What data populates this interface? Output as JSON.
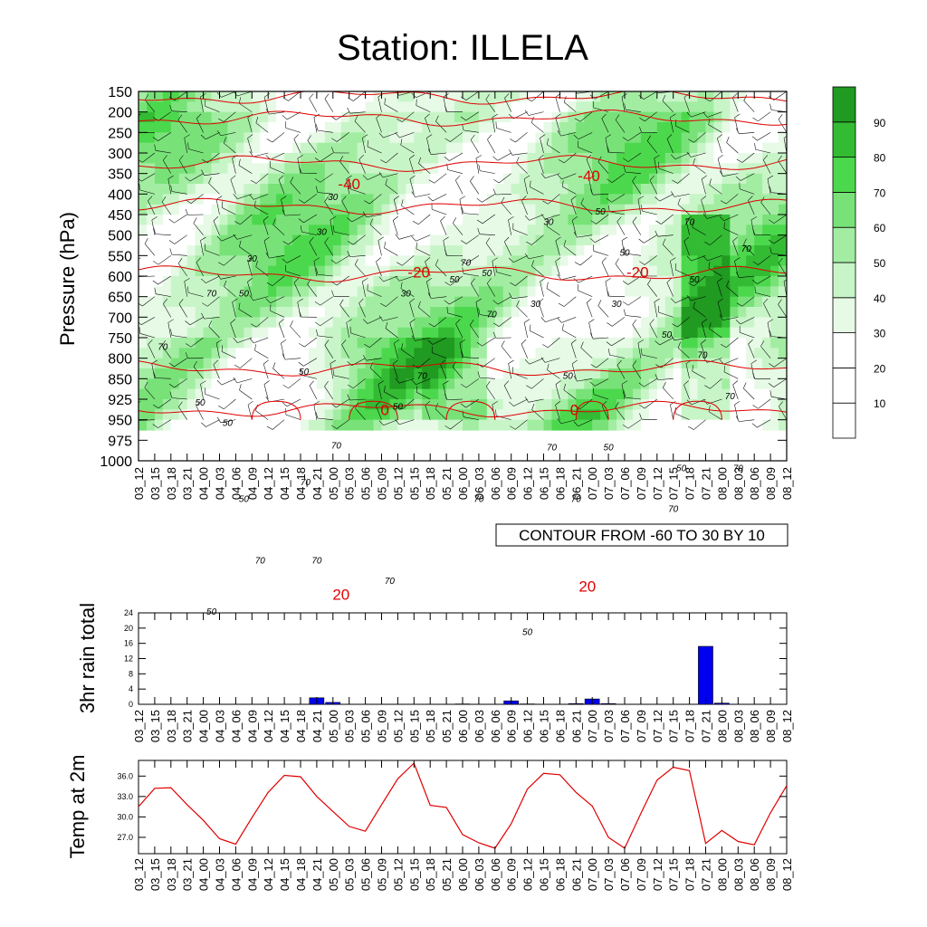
{
  "title": "Station: ILLELA",
  "times": [
    "03_12",
    "03_15",
    "03_18",
    "03_21",
    "04_00",
    "04_03",
    "04_06",
    "04_09",
    "04_12",
    "04_15",
    "04_18",
    "04_21",
    "05_00",
    "05_03",
    "05_06",
    "05_09",
    "05_12",
    "05_15",
    "05_18",
    "05_21",
    "06_00",
    "06_03",
    "06_06",
    "06_09",
    "06_12",
    "06_15",
    "06_18",
    "06_21",
    "07_00",
    "07_03",
    "07_06",
    "07_09",
    "07_12",
    "07_15",
    "07_18",
    "07_21",
    "08_00",
    "08_03",
    "08_06",
    "08_09",
    "08_12"
  ],
  "colors": {
    "rh_levels": [
      "#ffffff",
      "#ffffff",
      "#ffffff",
      "#e6fae6",
      "#c8f5c8",
      "#a2eda2",
      "#78e278",
      "#4cd84c",
      "#34bb34",
      "#209a20"
    ],
    "isotherm": "#e00000",
    "rain_bar": "#0000ee",
    "temp_line": "#e00000"
  },
  "chart_data": [
    {
      "type": "heatmap",
      "title": "Station: ILLELA",
      "ylabel": "Pressure (hPa)",
      "y_ticks": [
        "150",
        "200",
        "250",
        "300",
        "350",
        "400",
        "450",
        "500",
        "550",
        "600",
        "650",
        "700",
        "750",
        "800",
        "850",
        "925",
        "950",
        "975",
        "1000"
      ],
      "x_ticks": "times",
      "colorbar_labels": [
        "10",
        "20",
        "30",
        "40",
        "50",
        "60",
        "70",
        "80",
        "90"
      ],
      "contour_info": "CONTOUR FROM -60 TO 30 BY 10",
      "rh_labels": [
        {
          "text": "30",
          "t": 12.0,
          "p": 5.3
        },
        {
          "text": "30",
          "t": 11.3,
          "p": 7.0
        },
        {
          "text": "30",
          "t": 7.0,
          "p": 8.3
        },
        {
          "text": "70",
          "t": 4.5,
          "p": 10.0
        },
        {
          "text": "50",
          "t": 6.5,
          "p": 10.0
        },
        {
          "text": "70",
          "t": 1.5,
          "p": 12.6
        },
        {
          "text": "50",
          "t": 3.8,
          "p": 15.3
        },
        {
          "text": "50",
          "t": 5.5,
          "p": 16.3
        },
        {
          "text": "50",
          "t": 10.2,
          "p": 13.8
        },
        {
          "text": "30",
          "t": 16.5,
          "p": 10.0
        },
        {
          "text": "50",
          "t": 19.5,
          "p": 9.3
        },
        {
          "text": "70",
          "t": 20.2,
          "p": 8.5
        },
        {
          "text": "50",
          "t": 21.5,
          "p": 9.0
        },
        {
          "text": "70",
          "t": 21.8,
          "p": 11.0
        },
        {
          "text": "30",
          "t": 24.5,
          "p": 10.5
        },
        {
          "text": "70",
          "t": 17.5,
          "p": 14.0
        },
        {
          "text": "50",
          "t": 16.0,
          "p": 15.5
        },
        {
          "text": "70",
          "t": 12.2,
          "p": 17.4
        },
        {
          "text": "70",
          "t": 10.3,
          "p": 19.2
        },
        {
          "text": "50",
          "t": 6.5,
          "p": 20.0
        },
        {
          "text": "70",
          "t": 21.0,
          "p": 20.0
        },
        {
          "text": "70",
          "t": 15.5,
          "p": 24.0
        },
        {
          "text": "50",
          "t": 4.5,
          "p": 25.5
        },
        {
          "text": "30",
          "t": 25.3,
          "p": 6.5
        },
        {
          "text": "50",
          "t": 28.5,
          "p": 6.0
        },
        {
          "text": "30",
          "t": 29.5,
          "p": 10.5
        },
        {
          "text": "50",
          "t": 30.0,
          "p": 8.0
        },
        {
          "text": "70",
          "t": 34.0,
          "p": 6.5
        },
        {
          "text": "70",
          "t": 37.5,
          "p": 7.8
        },
        {
          "text": "50",
          "t": 34.3,
          "p": 9.3
        },
        {
          "text": "50",
          "t": 32.6,
          "p": 12.0
        },
        {
          "text": "70",
          "t": 34.8,
          "p": 13.0
        },
        {
          "text": "70",
          "t": 36.5,
          "p": 15.0
        },
        {
          "text": "50",
          "t": 26.5,
          "p": 14.0
        },
        {
          "text": "70",
          "t": 25.5,
          "p": 17.5
        },
        {
          "text": "50",
          "t": 29.0,
          "p": 17.5
        },
        {
          "text": "50",
          "t": 33.5,
          "p": 18.5
        },
        {
          "text": "70",
          "t": 37.0,
          "p": 18.5
        },
        {
          "text": "70",
          "t": 27.0,
          "p": 20.0
        },
        {
          "text": "70",
          "t": 33.0,
          "p": 20.5
        },
        {
          "text": "50",
          "t": 31.0,
          "p": 22.0
        },
        {
          "text": "70",
          "t": 11.0,
          "p": 23.0
        },
        {
          "text": "50",
          "t": 24.0,
          "p": 26.5
        },
        {
          "text": "70",
          "t": 7.5,
          "p": 23.0
        }
      ],
      "isotherm_labels": [
        {
          "text": "-40",
          "t": 13.0,
          "p": 4.5
        },
        {
          "text": "-40",
          "t": 27.8,
          "p": 4.1
        },
        {
          "text": "-20",
          "t": 17.3,
          "p": 8.8
        },
        {
          "text": "-20",
          "t": 30.8,
          "p": 8.8
        },
        {
          "text": "0",
          "t": 15.2,
          "p": 15.5
        },
        {
          "text": "0",
          "t": 26.9,
          "p": 15.5
        },
        {
          "text": "20",
          "t": 12.5,
          "p": 24.5
        },
        {
          "text": "20",
          "t": 27.7,
          "p": 24.1
        }
      ]
    },
    {
      "type": "bar",
      "ylabel": "3hr rain total",
      "categories": "times",
      "values": [
        0,
        0,
        0,
        0,
        0,
        0,
        0,
        0,
        0,
        0,
        0,
        1.7,
        0.5,
        0,
        0,
        0,
        0,
        0,
        0,
        0,
        0.1,
        0,
        0,
        0.9,
        0.1,
        0,
        0,
        0.2,
        1.4,
        0.2,
        0,
        0,
        0,
        0,
        0,
        15.2,
        0.3,
        0,
        0,
        0,
        0
      ],
      "ylim": [
        0,
        24
      ],
      "y_ticks": [
        "0",
        "4",
        "8",
        "12",
        "16",
        "20",
        "24"
      ]
    },
    {
      "type": "line",
      "ylabel": "Temp at 2m",
      "x": "times",
      "values": [
        31.5,
        34.2,
        34.3,
        31.8,
        29.5,
        26.8,
        26.0,
        29.9,
        33.6,
        36.1,
        35.9,
        33.0,
        30.8,
        28.6,
        27.9,
        31.8,
        35.6,
        37.9,
        31.7,
        31.4,
        27.4,
        26.2,
        25.4,
        29.0,
        34.1,
        36.4,
        36.2,
        33.6,
        31.6,
        27.0,
        25.4,
        30.5,
        35.4,
        37.3,
        36.8,
        26.1,
        28.0,
        26.4,
        25.9,
        30.6,
        34.6
      ],
      "ylim": [
        24.6,
        38.3
      ],
      "y_ticks": [
        "27.0",
        "30.0",
        "33.0",
        "36.0"
      ]
    }
  ]
}
